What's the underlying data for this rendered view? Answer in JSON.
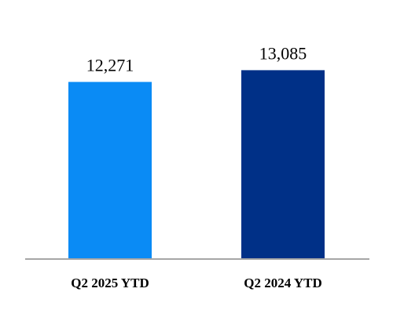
{
  "chart_data": {
    "type": "bar",
    "categories": [
      "Q2 2025 YTD",
      "Q2 2024 YTD"
    ],
    "values": [
      12271,
      13085
    ],
    "value_labels": [
      "12,271",
      "13,085"
    ],
    "colors": [
      "#0A8BF5",
      "#003087"
    ],
    "axis_color": "#A6A6A6",
    "ylim": [
      0,
      15500
    ],
    "grid": false,
    "legend": "none"
  }
}
